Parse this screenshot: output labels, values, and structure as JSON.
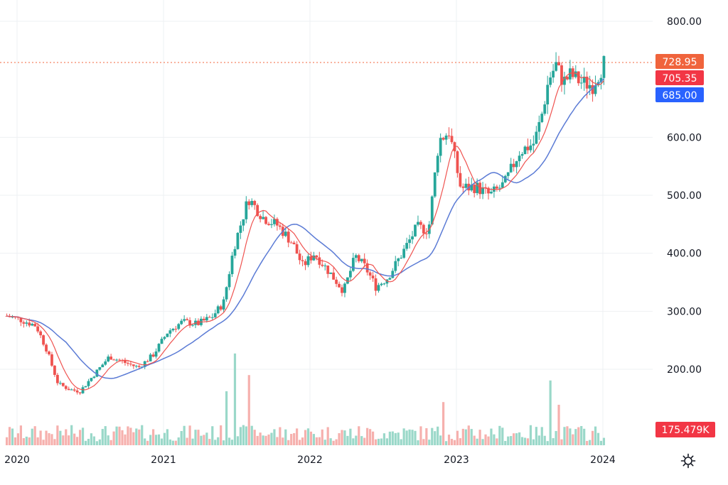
{
  "chart_data": {
    "type": "candlestick",
    "y_axis": {
      "ticks": [
        "800.00",
        "600.00",
        "500.00",
        "400.00",
        "300.00",
        "200.00"
      ],
      "ylim": [
        105,
        830
      ]
    },
    "x_axis": {
      "ticks": [
        "2020",
        "2021",
        "2022",
        "2023",
        "2024"
      ]
    },
    "price_labels": [
      {
        "name": "last-price",
        "value": "728.95",
        "color": "#f0643c"
      },
      {
        "name": "ma-fast",
        "value": "705.35",
        "color": "#f23645"
      },
      {
        "name": "ma-slow",
        "value": "685.00",
        "color": "#2962ff"
      }
    ],
    "volume_label": {
      "value": "175.479K",
      "color": "#f23645"
    },
    "last_price_line": 728.95,
    "colors": {
      "up": "#26a69a",
      "down": "#ef5350",
      "ma_fast": "#ef5350",
      "ma_slow": "#5b7bd5",
      "volume_up": "#9ad8c9",
      "volume_down": "#f6b0ad"
    },
    "anchors": [
      [
        2019.9,
        292
      ],
      [
        2020.0,
        285
      ],
      [
        2020.1,
        275
      ],
      [
        2020.17,
        235
      ],
      [
        2020.25,
        175
      ],
      [
        2020.33,
        165
      ],
      [
        2020.4,
        162
      ],
      [
        2020.5,
        192
      ],
      [
        2020.6,
        222
      ],
      [
        2020.7,
        212
      ],
      [
        2020.8,
        203
      ],
      [
        2020.9,
        225
      ],
      [
        2021.0,
        265
      ],
      [
        2021.1,
        282
      ],
      [
        2021.2,
        278
      ],
      [
        2021.3,
        290
      ],
      [
        2021.38,
        315
      ],
      [
        2021.45,
        410
      ],
      [
        2021.55,
        495
      ],
      [
        2021.65,
        462
      ],
      [
        2021.75,
        448
      ],
      [
        2021.85,
        418
      ],
      [
        2021.92,
        378
      ],
      [
        2022.0,
        400
      ],
      [
        2022.1,
        368
      ],
      [
        2022.2,
        335
      ],
      [
        2022.28,
        395
      ],
      [
        2022.35,
        375
      ],
      [
        2022.42,
        342
      ],
      [
        2022.5,
        358
      ],
      [
        2022.6,
        400
      ],
      [
        2022.7,
        445
      ],
      [
        2022.78,
        440
      ],
      [
        2022.85,
        595
      ],
      [
        2022.92,
        610
      ],
      [
        2023.0,
        512
      ],
      [
        2023.1,
        515
      ],
      [
        2023.2,
        500
      ],
      [
        2023.3,
        520
      ],
      [
        2023.4,
        575
      ],
      [
        2023.5,
        590
      ],
      [
        2023.55,
        635
      ],
      [
        2023.6,
        700
      ],
      [
        2023.65,
        725
      ],
      [
        2023.7,
        695
      ],
      [
        2023.75,
        708
      ],
      [
        2023.82,
        695
      ],
      [
        2023.9,
        690
      ],
      [
        2023.98,
        729
      ]
    ]
  }
}
